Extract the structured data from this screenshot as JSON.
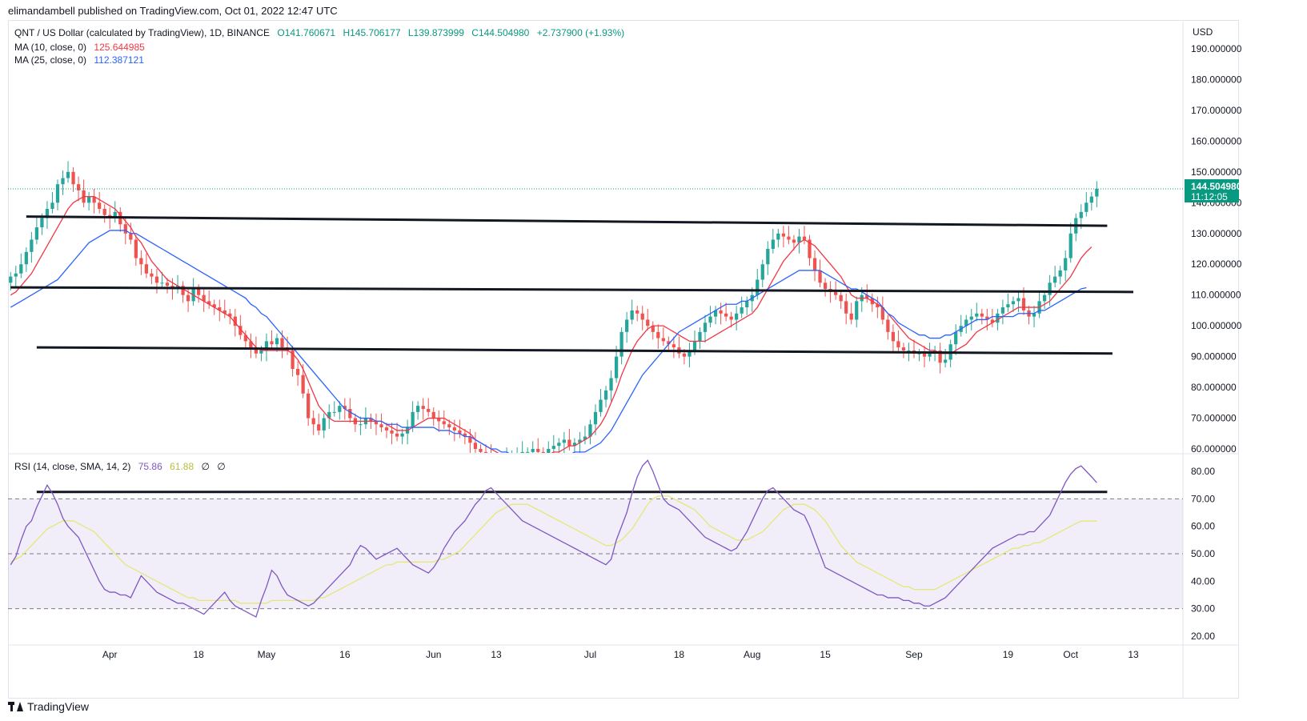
{
  "header": {
    "published_by": "elimandambell published on TradingView.com, Oct 01, 2022 12:47 UTC"
  },
  "legend": {
    "symbol": "QNT / US Dollar (calculated by TradingView), 1D, BINANCE",
    "open": "O141.760671",
    "high": "H145.706177",
    "low": "L139.873999",
    "close": "C144.504980",
    "change": "+2.737900 (+1.93%)",
    "ma10_label": "MA (10, close, 0)",
    "ma10_value": "125.644985",
    "ma25_label": "MA (25, close, 0)",
    "ma25_value": "112.387121",
    "rsi_label": "RSI (14, close, SMA, 14, 2)",
    "rsi_value": "75.86",
    "rsi_sma_value": "61.88",
    "rsi_extra1": "∅",
    "rsi_extra2": "∅"
  },
  "price_axis": {
    "currency": "USD",
    "last_price": "144.504980",
    "countdown": "11:12:05"
  },
  "footer": {
    "brand": "TradingView"
  },
  "colors": {
    "up": "#26a69a",
    "down": "#ef5350",
    "ma10": "#f23645",
    "ma25": "#2962ff",
    "rsi": "#7e57c2",
    "rsi_sma": "#e3e878",
    "trendline": "#131722"
  },
  "chart_data": {
    "type": "candlestick",
    "price_ticks": [
      60,
      70,
      80,
      90,
      100,
      110,
      120,
      130,
      140,
      150,
      160,
      170,
      180,
      190
    ],
    "price_tick_labels": [
      "60.000000",
      "70.000000",
      "80.000000",
      "90.000000",
      "100.000000",
      "110.000000",
      "120.000000",
      "130.000000",
      "140.000000",
      "150.000000",
      "160.000000",
      "170.000000",
      "180.000000",
      "190.000000"
    ],
    "rsi_ticks": [
      20,
      30,
      40,
      50,
      60,
      70,
      80
    ],
    "rsi_tick_labels": [
      "20.00",
      "30.00",
      "40.00",
      "50.00",
      "60.00",
      "70.00",
      "80.00"
    ],
    "x_labels": [
      {
        "label": "Apr",
        "day": 19
      },
      {
        "label": "18",
        "day": 36
      },
      {
        "label": "May",
        "day": 49
      },
      {
        "label": "16",
        "day": 64
      },
      {
        "label": "Jun",
        "day": 81
      },
      {
        "label": "13",
        "day": 93
      },
      {
        "label": "Jul",
        "day": 111
      },
      {
        "label": "18",
        "day": 128
      },
      {
        "label": "Aug",
        "day": 142
      },
      {
        "label": "15",
        "day": 156
      },
      {
        "label": "Sep",
        "day": 173
      },
      {
        "label": "19",
        "day": 191
      },
      {
        "label": "Oct",
        "day": 203
      },
      {
        "label": "13",
        "day": 215
      }
    ],
    "closes": [
      116,
      117,
      120,
      124,
      128,
      132,
      135,
      138,
      140,
      146,
      148,
      150,
      146,
      144,
      140,
      142,
      140,
      138,
      136,
      135,
      137,
      133,
      130,
      128,
      122,
      120,
      117,
      116,
      114,
      114,
      113,
      112,
      113,
      110,
      108,
      112,
      110,
      108,
      107,
      106,
      105,
      104,
      103,
      100,
      97,
      95,
      93,
      91,
      92,
      95,
      94,
      96,
      93,
      92,
      86,
      84,
      78,
      70,
      68,
      66,
      70,
      72,
      72,
      74,
      73,
      70,
      68,
      68,
      70,
      69,
      68,
      67,
      66,
      65,
      64,
      65,
      67,
      72,
      74,
      73,
      72,
      70,
      69,
      68,
      67,
      66,
      65,
      64,
      62,
      60,
      59,
      58,
      57,
      56,
      56,
      57,
      58,
      58,
      59,
      59,
      60,
      59,
      58,
      60,
      61,
      62,
      63,
      61,
      62,
      63,
      64,
      68,
      72,
      76,
      79,
      83,
      90,
      98,
      102,
      105,
      104,
      102,
      100,
      98,
      96,
      95,
      94,
      93,
      91,
      90,
      92,
      95,
      98,
      101,
      103,
      105,
      104,
      103,
      102,
      104,
      106,
      108,
      110,
      115,
      120,
      125,
      128,
      130,
      129,
      128,
      127,
      129,
      128,
      122,
      118,
      114,
      112,
      111,
      110,
      108,
      104,
      102,
      108,
      110,
      109,
      107,
      106,
      102,
      98,
      95,
      93,
      92,
      92,
      91,
      91,
      90,
      91,
      92,
      88,
      89,
      94,
      98,
      100,
      102,
      103,
      104,
      103,
      102,
      101,
      104,
      106,
      107,
      108,
      109,
      105,
      103,
      104,
      108,
      110,
      114,
      116,
      118,
      122,
      130,
      135,
      137,
      140,
      142,
      144.5
    ],
    "ma10": [
      110,
      111,
      113,
      115,
      117,
      120,
      123,
      126,
      129,
      132,
      135,
      138,
      140,
      141,
      142,
      142,
      142,
      141,
      140,
      139,
      138,
      136,
      134,
      132,
      129,
      127,
      124,
      121,
      119,
      117,
      115,
      114,
      113,
      112,
      111,
      110,
      109,
      108,
      107,
      106,
      105,
      104,
      103,
      101,
      99,
      97,
      95,
      93,
      92,
      92,
      92,
      92,
      92,
      92,
      91,
      89,
      86,
      82,
      78,
      74,
      72,
      70,
      69,
      69,
      69,
      69,
      69,
      69,
      69,
      69,
      69,
      69,
      68,
      67,
      66,
      66,
      66,
      67,
      68,
      69,
      70,
      70,
      70,
      70,
      69,
      68,
      67,
      66,
      65,
      63,
      62,
      61,
      60,
      59,
      58,
      57,
      57,
      57,
      57,
      57,
      58,
      58,
      58,
      58,
      59,
      59,
      60,
      61,
      61,
      62,
      63,
      64,
      66,
      68,
      71,
      75,
      79,
      84,
      88,
      92,
      95,
      97,
      99,
      100,
      100,
      100,
      99,
      98,
      97,
      96,
      95,
      95,
      95,
      95,
      96,
      97,
      98,
      99,
      100,
      101,
      102,
      103,
      104,
      106,
      109,
      112,
      115,
      118,
      121,
      123,
      125,
      127,
      128,
      127,
      126,
      124,
      122,
      120,
      118,
      116,
      113,
      110,
      109,
      109,
      109,
      108,
      107,
      106,
      104,
      102,
      100,
      98,
      96,
      95,
      94,
      93,
      92,
      92,
      91,
      91,
      91,
      92,
      93,
      94,
      96,
      98,
      99,
      100,
      101,
      102,
      103,
      104,
      105,
      106,
      106,
      106,
      106,
      106,
      107,
      108,
      110,
      112,
      114,
      116,
      119,
      122,
      124,
      125.64
    ],
    "ma25": [
      106,
      107,
      108,
      109,
      110,
      111,
      112,
      113,
      114,
      115,
      117,
      119,
      121,
      123,
      125,
      127,
      128,
      129,
      130,
      131,
      131,
      131,
      131,
      130,
      130,
      129,
      128,
      127,
      126,
      125,
      124,
      123,
      122,
      121,
      120,
      119,
      118,
      117,
      116,
      115,
      114,
      113,
      112,
      111,
      110,
      109,
      107,
      106,
      104,
      103,
      101,
      99,
      97,
      95,
      93,
      91,
      89,
      87,
      85,
      83,
      81,
      79,
      77,
      75,
      73,
      72,
      71,
      70,
      70,
      70,
      69,
      69,
      68,
      68,
      68,
      67,
      67,
      67,
      67,
      67,
      67,
      67,
      66,
      66,
      66,
      65,
      65,
      64,
      64,
      63,
      62,
      61,
      60,
      60,
      59,
      59,
      58,
      58,
      58,
      58,
      58,
      58,
      58,
      58,
      58,
      58,
      58,
      58,
      59,
      59,
      59,
      60,
      61,
      62,
      64,
      66,
      69,
      72,
      75,
      78,
      81,
      84,
      86,
      88,
      90,
      92,
      94,
      96,
      98,
      99,
      100,
      101,
      102,
      103,
      104,
      105,
      106,
      107,
      107,
      107,
      108,
      108,
      109,
      110,
      111,
      112,
      113,
      114,
      115,
      116,
      117,
      118,
      118,
      118,
      118,
      118,
      117,
      116,
      115,
      114,
      113,
      112,
      112,
      111,
      110,
      109,
      108,
      106,
      104,
      103,
      101,
      100,
      99,
      98,
      97,
      97,
      96,
      96,
      96,
      97,
      97,
      98,
      99,
      100,
      101,
      102,
      102,
      102,
      103,
      103,
      103,
      103,
      103,
      104,
      104,
      104,
      104,
      105,
      105,
      106,
      107,
      108,
      109,
      110,
      111,
      112,
      112.39
    ],
    "rsi": [
      46,
      49,
      55,
      60,
      62,
      67,
      71,
      75,
      72,
      68,
      63,
      60,
      58,
      56,
      52,
      48,
      44,
      40,
      37,
      36,
      36,
      35,
      35,
      34,
      38,
      42,
      40,
      38,
      36,
      35,
      34,
      33,
      32,
      32,
      31,
      30,
      29,
      28,
      30,
      32,
      34,
      36,
      33,
      31,
      30,
      29,
      28,
      27,
      33,
      38,
      44,
      42,
      38,
      35,
      34,
      33,
      32,
      31,
      32,
      34,
      36,
      38,
      40,
      42,
      44,
      46,
      50,
      53,
      52,
      50,
      48,
      49,
      50,
      51,
      52,
      50,
      48,
      46,
      45,
      44,
      43,
      45,
      48,
      52,
      55,
      58,
      60,
      62,
      65,
      68,
      70,
      73,
      74,
      72,
      70,
      68,
      66,
      64,
      62,
      61,
      60,
      59,
      58,
      57,
      56,
      55,
      54,
      53,
      52,
      51,
      50,
      49,
      48,
      47,
      46,
      48,
      55,
      60,
      65,
      72,
      78,
      82,
      84,
      80,
      75,
      70,
      68,
      67,
      66,
      64,
      62,
      60,
      58,
      56,
      55,
      54,
      53,
      52,
      51,
      52,
      55,
      58,
      62,
      66,
      70,
      73,
      74,
      72,
      70,
      68,
      66,
      65,
      64,
      60,
      55,
      50,
      45,
      44,
      43,
      42,
      41,
      40,
      39,
      38,
      37,
      36,
      35,
      35,
      34,
      34,
      34,
      33,
      33,
      32,
      32,
      31,
      31,
      32,
      33,
      34,
      36,
      38,
      40,
      42,
      44,
      46,
      48,
      50,
      52,
      53,
      54,
      55,
      56,
      57,
      57,
      58,
      58,
      60,
      62,
      64,
      68,
      72,
      76,
      79,
      81,
      82,
      80,
      78,
      75.86
    ],
    "rsi_sma": [
      47,
      48,
      49,
      51,
      53,
      55,
      57,
      59,
      60,
      61,
      62,
      62,
      62,
      61,
      60,
      59,
      58,
      56,
      54,
      52,
      50,
      48,
      46,
      45,
      44,
      43,
      42,
      41,
      40,
      39,
      38,
      37,
      36,
      35,
      34,
      34,
      33,
      33,
      33,
      33,
      33,
      33,
      33,
      33,
      32,
      32,
      32,
      32,
      32,
      32,
      33,
      33,
      33,
      33,
      33,
      33,
      33,
      33,
      33,
      34,
      34,
      35,
      36,
      37,
      38,
      39,
      40,
      41,
      42,
      43,
      44,
      45,
      46,
      46,
      47,
      47,
      47,
      47,
      47,
      47,
      47,
      47,
      48,
      48,
      49,
      50,
      51,
      53,
      55,
      57,
      59,
      61,
      63,
      65,
      66,
      67,
      68,
      68,
      68,
      68,
      67,
      66,
      65,
      64,
      63,
      62,
      61,
      60,
      59,
      58,
      57,
      56,
      55,
      54,
      53,
      53,
      54,
      55,
      57,
      59,
      62,
      65,
      68,
      70,
      71,
      71,
      71,
      70,
      69,
      68,
      67,
      66,
      64,
      62,
      60,
      59,
      58,
      57,
      56,
      55,
      55,
      55,
      56,
      57,
      58,
      60,
      62,
      64,
      66,
      67,
      68,
      68,
      68,
      67,
      66,
      64,
      62,
      59,
      56,
      53,
      51,
      49,
      47,
      46,
      45,
      44,
      43,
      42,
      41,
      40,
      39,
      38,
      38,
      37,
      37,
      37,
      37,
      37,
      38,
      39,
      40,
      41,
      42,
      43,
      44,
      45,
      46,
      47,
      48,
      49,
      50,
      51,
      52,
      52,
      53,
      53,
      54,
      54,
      55,
      56,
      57,
      58,
      59,
      60,
      61,
      61.88,
      61.88,
      61.88,
      61.88
    ],
    "trendlines": [
      {
        "name": "resistance-upper",
        "from": [
          3,
          135.5
        ],
        "to": [
          210,
          132.5
        ]
      },
      {
        "name": "resistance-middle",
        "from": [
          0,
          112.5
        ],
        "to": [
          215,
          111
        ]
      },
      {
        "name": "support-lower",
        "from": [
          5,
          93
        ],
        "to": [
          211,
          91
        ]
      },
      {
        "name": "rsi-level",
        "from": [
          5,
          72.5
        ],
        "to": [
          210,
          72.5
        ]
      }
    ],
    "days_total": 225,
    "price_range": [
      60,
      200
    ],
    "rsi_range": [
      15,
      85
    ]
  }
}
